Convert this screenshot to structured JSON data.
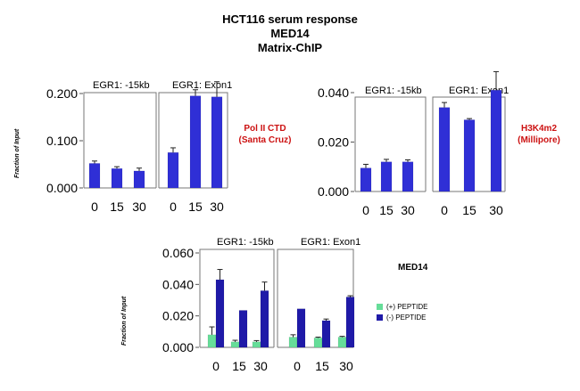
{
  "titles": [
    "HCT116 serum response",
    "MED14",
    "Matrix-ChIP"
  ],
  "ylabel": "Fraction of Input",
  "annotations": {
    "polII": [
      "Pol II CTD",
      "(Santa Cruz)"
    ],
    "h3k4": [
      "H3K4m2",
      "(Millipore)"
    ],
    "med14": "MED14"
  },
  "legend": [
    {
      "label": "(+) PEPTIDE",
      "color": "#66dd99"
    },
    {
      "label": "(-) PEPTIDE",
      "color": "#1f1aa8"
    }
  ],
  "colors": {
    "single": "#2f2fd6",
    "plus": "#66dd99",
    "minus": "#1f1aa8"
  },
  "chart_data": [
    {
      "type": "bar",
      "ylabel": "Fraction of Input",
      "ylim": [
        0,
        0.22
      ],
      "yticks": [
        "0.000",
        "0.100",
        "0.200"
      ],
      "ytick_values": [
        0,
        0.1,
        0.2
      ],
      "panels": [
        {
          "title": "EGR1: -15kb",
          "categories": [
            "0",
            "15",
            "30"
          ],
          "series": [
            {
              "values": [
                0.052,
                0.041,
                0.036
              ],
              "errors": [
                0.005,
                0.004,
                0.006
              ]
            }
          ]
        },
        {
          "title": "EGR1: Exon1",
          "categories": [
            "0",
            "15",
            "30"
          ],
          "series": [
            {
              "values": [
                0.075,
                0.195,
                0.193
              ],
              "errors": [
                0.01,
                0.013,
                0.032
              ]
            }
          ]
        }
      ]
    },
    {
      "type": "bar",
      "ylabel": "",
      "ylim": [
        0,
        0.046
      ],
      "yticks": [
        "0.000",
        "0.020",
        "0.040"
      ],
      "ytick_values": [
        0,
        0.02,
        0.04
      ],
      "panels": [
        {
          "title": "EGR1: -15kb",
          "categories": [
            "0",
            "15",
            "30"
          ],
          "series": [
            {
              "values": [
                0.0095,
                0.012,
                0.012
              ],
              "errors": [
                0.0015,
                0.001,
                0.0008
              ]
            }
          ]
        },
        {
          "title": "EGR1: Exon1",
          "categories": [
            "0",
            "15",
            "30"
          ],
          "series": [
            {
              "values": [
                0.034,
                0.029,
                0.041
              ],
              "errors": [
                0.002,
                0.0005,
                0.0075
              ]
            }
          ]
        }
      ]
    },
    {
      "type": "bar",
      "ylabel": "Fraction of Input",
      "ylim": [
        0,
        0.06
      ],
      "yticks": [
        "0.000",
        "0.020",
        "0.040",
        "0.060"
      ],
      "ytick_values": [
        0,
        0.02,
        0.04,
        0.06
      ],
      "panels": [
        {
          "title": "EGR1: -15kb",
          "categories": [
            "0",
            "15",
            "30"
          ],
          "series": [
            {
              "name": "(+) PEPTIDE",
              "values": [
                0.008,
                0.0035,
                0.0035
              ],
              "errors": [
                0.005,
                0.001,
                0.0008
              ]
            },
            {
              "name": "(-) PEPTIDE",
              "values": [
                0.043,
                0.0235,
                0.036
              ],
              "errors": [
                0.0065,
                0,
                0.0055
              ]
            }
          ]
        },
        {
          "title": "EGR1: Exon1",
          "categories": [
            "0",
            "15",
            "30"
          ],
          "series": [
            {
              "name": "(+) PEPTIDE",
              "values": [
                0.0065,
                0.006,
                0.0065
              ],
              "errors": [
                0.0015,
                0.0005,
                0.0005
              ]
            },
            {
              "name": "(-) PEPTIDE",
              "values": [
                0.0245,
                0.017,
                0.032
              ],
              "errors": [
                0,
                0.001,
                0.0008
              ]
            }
          ]
        }
      ]
    }
  ]
}
